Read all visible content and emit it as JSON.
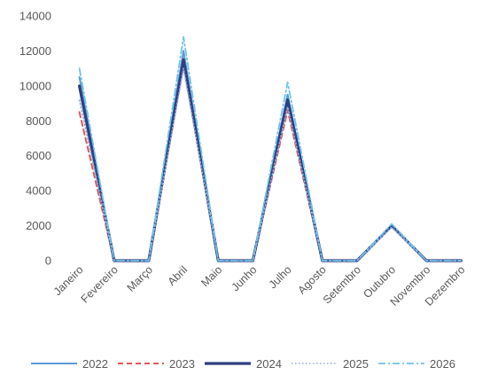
{
  "chart_data": {
    "type": "line",
    "categories": [
      "Janeiro",
      "Fevereiro",
      "Março",
      "Abril",
      "Maio",
      "Junho",
      "Julho",
      "Agosto",
      "Setembro",
      "Outubro",
      "Novembro",
      "Dezembro"
    ],
    "ylim": [
      0,
      14000
    ],
    "yticks": [
      0,
      2000,
      4000,
      6000,
      8000,
      10000,
      12000,
      14000
    ],
    "grid": false,
    "legend_position": "bottom",
    "series": [
      {
        "name": "2022",
        "color": "#5b9bd5",
        "dash": "solid",
        "values": [
          10500,
          0,
          0,
          12000,
          0,
          0,
          9500,
          0,
          0,
          2000,
          0,
          0
        ]
      },
      {
        "name": "2023",
        "color": "#e15759",
        "dash": "dashed",
        "values": [
          8500,
          0,
          0,
          11200,
          0,
          0,
          8600,
          0,
          0,
          2000,
          0,
          0
        ]
      },
      {
        "name": "2024",
        "color": "#2f3f7f",
        "dash": "solid-thick",
        "values": [
          10000,
          0,
          0,
          11500,
          0,
          0,
          9200,
          0,
          0,
          2000,
          0,
          0
        ]
      },
      {
        "name": "2025",
        "color": "#8faadc",
        "dash": "dotted",
        "values": [
          9200,
          0,
          0,
          11000,
          0,
          0,
          8800,
          0,
          0,
          1900,
          0,
          0
        ]
      },
      {
        "name": "2026",
        "color": "#6fc3e8",
        "dash": "dashdot",
        "values": [
          11000,
          0,
          0,
          12800,
          0,
          0,
          10200,
          0,
          0,
          2100,
          0,
          0
        ]
      }
    ]
  }
}
